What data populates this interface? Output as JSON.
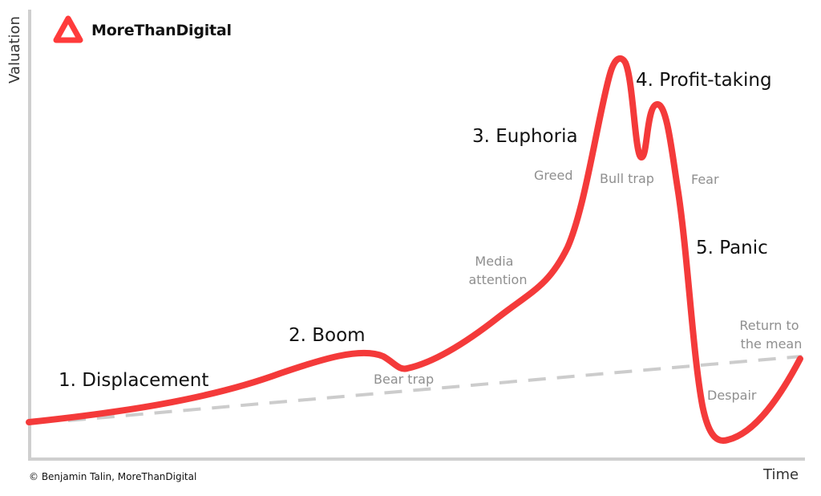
{
  "brand": {
    "name": "MoreThanDigital",
    "logo_color": "#ff3b3b"
  },
  "axes": {
    "y_label": "Valuation",
    "x_label": "Time",
    "color": "#cfcfcf"
  },
  "curve": {
    "color": "#f43a3a",
    "trend_color": "#cccccc"
  },
  "stages": [
    {
      "id": "displacement",
      "label": "1. Displacement"
    },
    {
      "id": "boom",
      "label": "2. Boom"
    },
    {
      "id": "euphoria",
      "label": "3. Euphoria"
    },
    {
      "id": "profit-taking",
      "label": "4. Profit-taking"
    },
    {
      "id": "panic",
      "label": "5. Panic"
    }
  ],
  "annotations": [
    {
      "id": "bear-trap",
      "lines": [
        "Bear trap"
      ]
    },
    {
      "id": "media-attention",
      "lines": [
        "Media",
        "attention"
      ]
    },
    {
      "id": "greed",
      "lines": [
        "Greed"
      ]
    },
    {
      "id": "bull-trap",
      "lines": [
        "Bull trap"
      ]
    },
    {
      "id": "fear",
      "lines": [
        "Fear"
      ]
    },
    {
      "id": "return-to-mean",
      "lines": [
        "Return to",
        "the mean"
      ]
    },
    {
      "id": "despair",
      "lines": [
        "Despair"
      ]
    }
  ],
  "copyright": "© Benjamin Talin, MoreThanDigital"
}
